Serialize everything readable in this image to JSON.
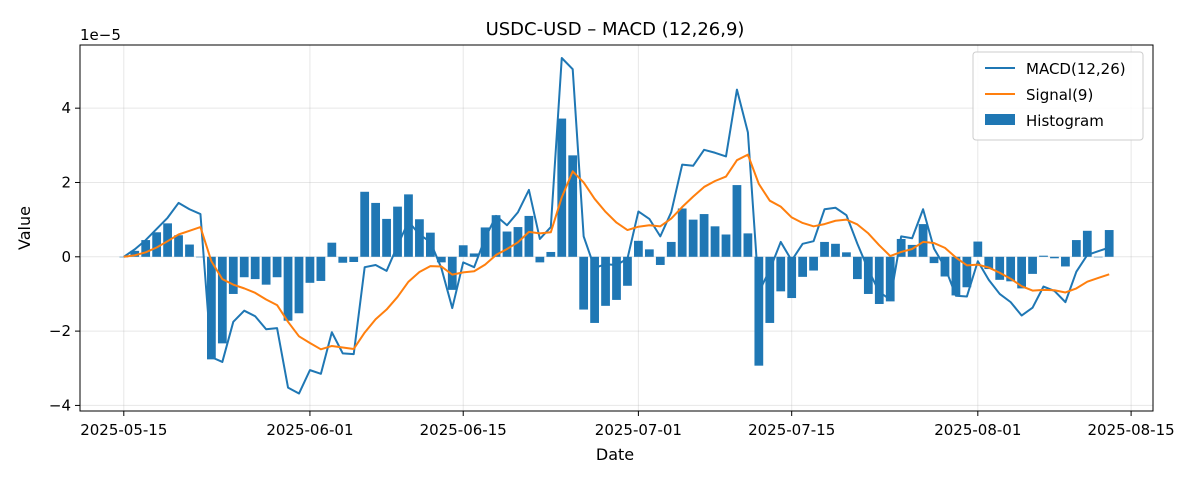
{
  "chart_data": {
    "type": "line",
    "title": "USDC-USD – MACD (12,26,9)",
    "xlabel": "Date",
    "ylabel": "Value",
    "y_offset_label": "1e−5",
    "y_scale_note": "values in units of 1e-5",
    "xlim": [
      "2025-05-11",
      "2025-08-17"
    ],
    "ylim": [
      -4.15,
      5.7
    ],
    "x_ticks": [
      "2025-05-15",
      "2025-06-01",
      "2025-06-15",
      "2025-07-01",
      "2025-07-15",
      "2025-08-01",
      "2025-08-15"
    ],
    "y_ticks": [
      -4,
      -2,
      0,
      2,
      4
    ],
    "grid": true,
    "legend_position": "top-right",
    "start_date": "2025-05-15",
    "colors": {
      "macd": "#1f77b4",
      "signal": "#ff7f0e",
      "histogram": "#1f77b4"
    },
    "series": [
      {
        "name": "MACD(12,26)",
        "kind": "line",
        "values": [
          0.0,
          0.2,
          0.45,
          0.75,
          1.05,
          1.45,
          1.28,
          1.15,
          -2.7,
          -2.83,
          -1.75,
          -1.45,
          -1.6,
          -1.95,
          -1.92,
          -3.52,
          -3.68,
          -3.05,
          -3.15,
          -2.03,
          -2.6,
          -2.62,
          -0.28,
          -0.22,
          -0.38,
          0.3,
          0.95,
          0.6,
          0.4,
          -0.3,
          -1.38,
          -0.15,
          -0.28,
          0.5,
          1.1,
          0.85,
          1.2,
          1.8,
          0.48,
          0.8,
          5.35,
          5.05,
          0.55,
          -0.3,
          -0.2,
          -0.22,
          -0.05,
          1.22,
          1.02,
          0.55,
          1.2,
          2.48,
          2.45,
          2.88,
          2.8,
          2.7,
          4.5,
          3.35,
          -0.95,
          -0.35,
          0.4,
          -0.1,
          0.35,
          0.42,
          1.28,
          1.32,
          1.12,
          0.35,
          -0.35,
          -0.95,
          -1.15,
          0.55,
          0.5,
          1.28,
          0.22,
          -0.28,
          -1.05,
          -1.07,
          -0.12,
          -0.62,
          -1.0,
          -1.22,
          -1.58,
          -1.37,
          -0.8,
          -0.92,
          -1.22,
          -0.4,
          0.05,
          0.15,
          0.25
        ],
        "note": "MACD line plotted through 2025-08-12; last value at 2025-08-12"
      },
      {
        "name": "Signal(9)",
        "kind": "line",
        "values": [
          0.0,
          0.04,
          0.12,
          0.25,
          0.42,
          0.6,
          0.7,
          0.8,
          -0.12,
          -0.6,
          -0.75,
          -0.85,
          -0.97,
          -1.15,
          -1.3,
          -1.75,
          -2.14,
          -2.32,
          -2.49,
          -2.4,
          -2.44,
          -2.48,
          -2.04,
          -1.68,
          -1.42,
          -1.08,
          -0.67,
          -0.41,
          -0.25,
          -0.26,
          -0.48,
          -0.42,
          -0.39,
          -0.21,
          0.05,
          0.21,
          0.39,
          0.67,
          0.63,
          0.66,
          1.6,
          2.3,
          2.0,
          1.56,
          1.21,
          0.92,
          0.72,
          0.81,
          0.85,
          0.82,
          1.03,
          1.34,
          1.62,
          1.88,
          2.04,
          2.16,
          2.6,
          2.75,
          1.96,
          1.51,
          1.35,
          1.06,
          0.91,
          0.82,
          0.88,
          0.97,
          1.0,
          0.87,
          0.63,
          0.31,
          0.02,
          0.13,
          0.21,
          0.4,
          0.37,
          0.24,
          -0.02,
          -0.23,
          -0.21,
          -0.29,
          -0.43,
          -0.59,
          -0.79,
          -0.91,
          -0.89,
          -0.9,
          -0.96,
          -0.85,
          -0.67,
          -0.57,
          -0.47
        ]
      },
      {
        "name": "Histogram",
        "kind": "bar",
        "values": [
          0.0,
          0.16,
          0.45,
          0.66,
          0.9,
          0.58,
          0.33,
          0.0,
          -2.76,
          -2.33,
          -1.0,
          -0.55,
          -0.6,
          -0.75,
          -0.55,
          -1.72,
          -1.52,
          -0.7,
          -0.65,
          0.38,
          -0.16,
          -0.14,
          1.75,
          1.45,
          1.02,
          1.35,
          1.68,
          1.01,
          0.65,
          -0.15,
          -0.89,
          0.31,
          0.09,
          0.79,
          1.12,
          0.68,
          0.8,
          1.1,
          -0.15,
          0.13,
          3.72,
          2.73,
          -1.42,
          -1.78,
          -1.32,
          -1.16,
          -0.78,
          0.43,
          0.2,
          -0.22,
          0.4,
          1.3,
          1.0,
          1.15,
          0.82,
          0.6,
          1.93,
          0.63,
          -2.93,
          -1.78,
          -0.93,
          -1.11,
          -0.54,
          -0.37,
          0.4,
          0.35,
          0.12,
          -0.6,
          -1.0,
          -1.27,
          -1.2,
          0.48,
          0.32,
          0.88,
          -0.17,
          -0.53,
          -1.04,
          -0.82,
          0.41,
          -0.33,
          -0.62,
          -0.66,
          -0.85,
          -0.46,
          0.03,
          -0.04,
          -0.26,
          0.45,
          0.7,
          0.0,
          0.72
        ],
        "note": "bars at daily dates from 2025-05-15"
      }
    ]
  }
}
